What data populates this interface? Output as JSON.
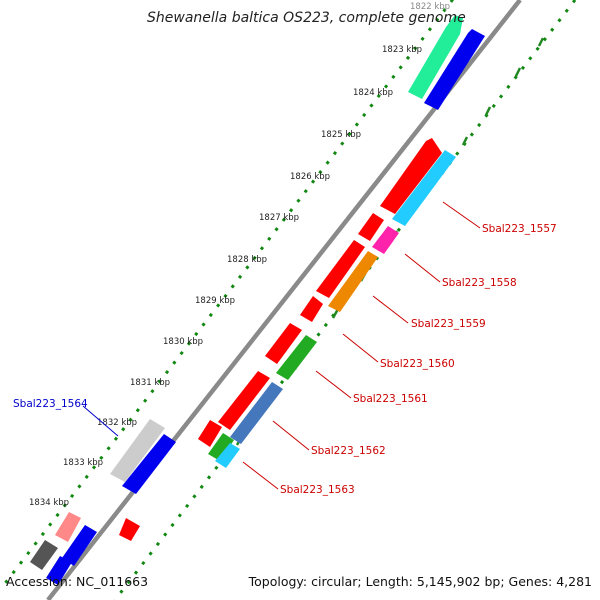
{
  "title": "Shewanella baltica OS223, complete genome",
  "footer": {
    "accession": "Accession: NC_011663",
    "summary": "Topology: circular; Length: 5,145,902 bp; Genes: 4,281"
  },
  "ticks": [
    "1822 kbp",
    "1823 kbp",
    "1824 kbp",
    "1825 kbp",
    "1826 kbp",
    "1827 kbp",
    "1828 kbp",
    "1829 kbp",
    "1830 kbp",
    "1831 kbp",
    "1832 kbp",
    "1833 kbp",
    "1834 kbp"
  ],
  "gene_labels": {
    "g1557": "Sbal223_1557",
    "g1558": "Sbal223_1558",
    "g1559": "Sbal223_1559",
    "g1560": "Sbal223_1560",
    "g1561": "Sbal223_1561",
    "g1562": "Sbal223_1562",
    "g1563": "Sbal223_1563",
    "g1564": "Sbal223_1564"
  },
  "colors": {
    "backbone": "#8a8a8a",
    "dots": "#118811",
    "gc_marks": "#228822",
    "red_cds": "#ff0000",
    "blue_cds": "#0000ee",
    "green_cds": "#22ee99",
    "cyan_cds": "#22ccff",
    "magenta_cds": "#ff22aa",
    "orange_cds": "#ee8800",
    "dark_green_cds": "#22aa22",
    "steel_cds": "#4477bb",
    "gray_cds": "#cccccc",
    "dark_gray_cds": "#555555",
    "pink_cds": "#ff8888",
    "label_red": "#cc0000",
    "label_blue": "#0000cc"
  }
}
